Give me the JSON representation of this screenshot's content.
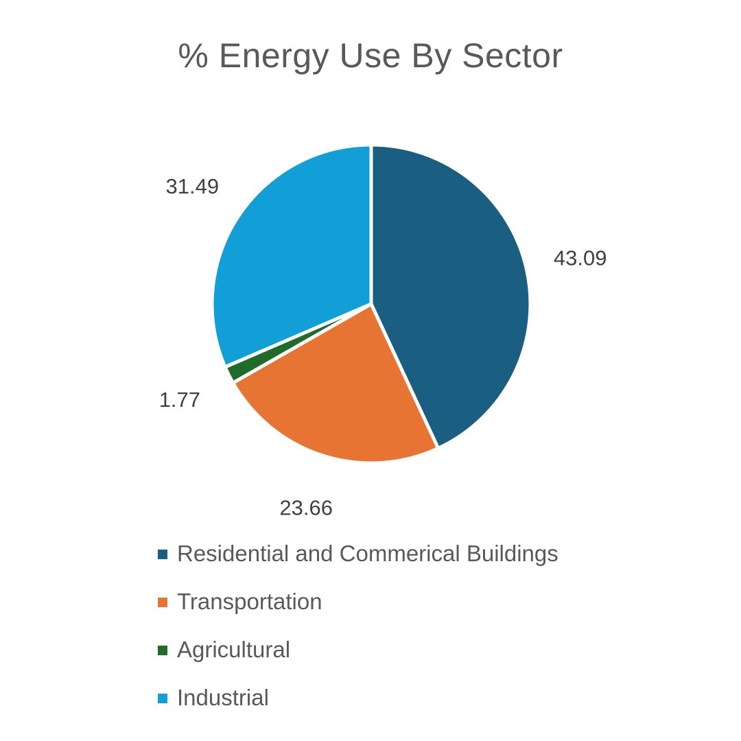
{
  "chart_data": {
    "type": "pie",
    "title": "% Energy Use By Sector",
    "categories": [
      "Residential and Commerical Buildings",
      "Transportation",
      "Agricultural",
      "Industrial"
    ],
    "values": [
      43.09,
      23.66,
      1.77,
      31.49
    ],
    "value_labels": [
      "43.09",
      "23.66",
      "1.77",
      "31.49"
    ],
    "colors": [
      "#1a5e82",
      "#e87433",
      "#1e6b2a",
      "#129fd8"
    ],
    "legend_position": "bottom",
    "start_angle": "12 o'clock",
    "direction": "clockwise"
  }
}
